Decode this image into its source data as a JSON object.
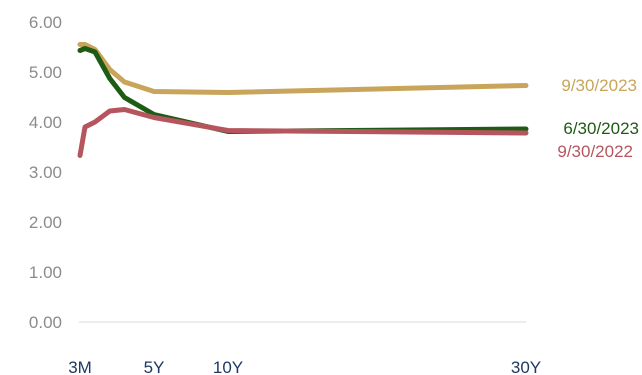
{
  "chart_data": {
    "type": "line",
    "title": "",
    "xlabel": "",
    "ylabel": "",
    "ylim": [
      0,
      6
    ],
    "grid": false,
    "y_ticks": [
      "0.00",
      "1.00",
      "2.00",
      "3.00",
      "4.00",
      "5.00",
      "6.00"
    ],
    "x_tick_labels": [
      {
        "label": "3M",
        "maturity_years": 0.25
      },
      {
        "label": "5Y",
        "maturity_years": 5
      },
      {
        "label": "10Y",
        "maturity_years": 10
      },
      {
        "label": "30Y",
        "maturity_years": 30
      }
    ],
    "xlim_years": [
      0.25,
      30
    ],
    "series": [
      {
        "name": "9/30/2023",
        "color": "#c8a55a",
        "points": [
          [
            0.25,
            5.55
          ],
          [
            0.5,
            5.55
          ],
          [
            1,
            5.45
          ],
          [
            2,
            5.05
          ],
          [
            3,
            4.8
          ],
          [
            5,
            4.61
          ],
          [
            10,
            4.59
          ],
          [
            30,
            4.73
          ]
        ]
      },
      {
        "name": "6/30/2023",
        "color": "#1e5b14",
        "points": [
          [
            0.25,
            5.43
          ],
          [
            0.5,
            5.47
          ],
          [
            1,
            5.4
          ],
          [
            2,
            4.87
          ],
          [
            3,
            4.49
          ],
          [
            5,
            4.15
          ],
          [
            10,
            3.81
          ],
          [
            30,
            3.86
          ]
        ]
      },
      {
        "name": "9/30/2022",
        "color": "#b5565f",
        "points": [
          [
            0.25,
            3.33
          ],
          [
            0.5,
            3.9
          ],
          [
            1,
            4.0
          ],
          [
            2,
            4.22
          ],
          [
            3,
            4.25
          ],
          [
            5,
            4.09
          ],
          [
            10,
            3.83
          ],
          [
            30,
            3.78
          ]
        ]
      }
    ]
  }
}
